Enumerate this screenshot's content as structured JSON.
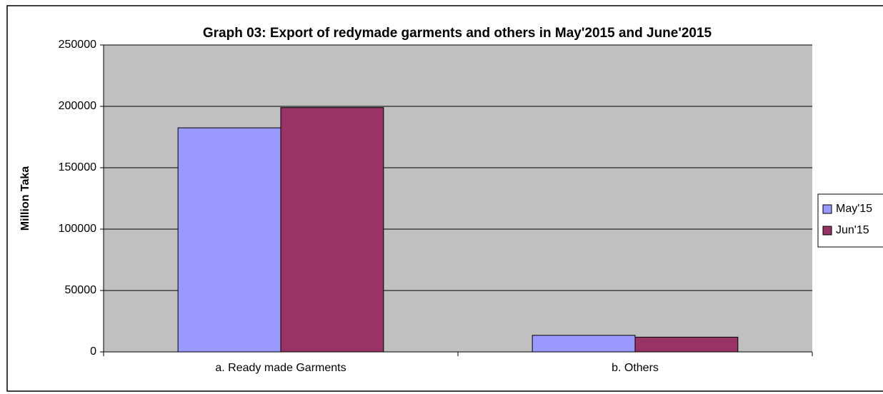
{
  "chart_data": {
    "type": "bar",
    "title": "Graph 03: Export of redymade garments and others in May'2015 and June'2015",
    "y_label": "Million Taka",
    "categories": [
      "a. Ready made Garments",
      "b. Others"
    ],
    "series": [
      {
        "name": "May'15",
        "color": "#9999ff",
        "values": [
          182500,
          13500
        ]
      },
      {
        "name": "Jun'15",
        "color": "#993366",
        "values": [
          199000,
          12000
        ]
      }
    ],
    "ylim": [
      0,
      250000
    ],
    "yticks": [
      0,
      50000,
      100000,
      150000,
      200000,
      250000
    ],
    "grid": true,
    "legend": "right"
  }
}
